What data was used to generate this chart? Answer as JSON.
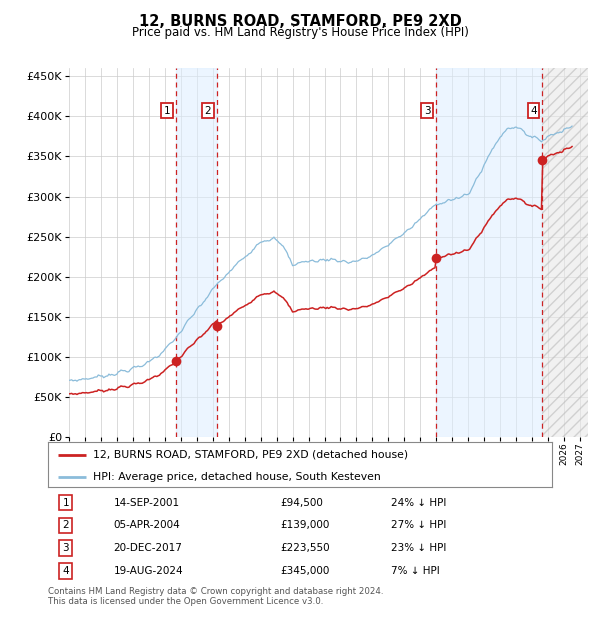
{
  "title": "12, BURNS ROAD, STAMFORD, PE9 2XD",
  "subtitle": "Price paid vs. HM Land Registry's House Price Index (HPI)",
  "ylim": [
    0,
    460000
  ],
  "yticks": [
    0,
    50000,
    100000,
    150000,
    200000,
    250000,
    300000,
    350000,
    400000,
    450000
  ],
  "xlim_start": 1995.0,
  "xlim_end": 2027.5,
  "purchases": [
    {
      "date_num": 2001.708,
      "price": 94500,
      "label": "1"
    },
    {
      "date_num": 2004.256,
      "price": 139000,
      "label": "2"
    },
    {
      "date_num": 2017.972,
      "price": 223550,
      "label": "3"
    },
    {
      "date_num": 2024.633,
      "price": 345000,
      "label": "4"
    }
  ],
  "table_rows": [
    {
      "num": "1",
      "date": "14-SEP-2001",
      "price": "£94,500",
      "pct": "24% ↓ HPI"
    },
    {
      "num": "2",
      "date": "05-APR-2004",
      "price": "£139,000",
      "pct": "27% ↓ HPI"
    },
    {
      "num": "3",
      "date": "20-DEC-2017",
      "price": "£223,550",
      "pct": "23% ↓ HPI"
    },
    {
      "num": "4",
      "date": "19-AUG-2024",
      "price": "£345,000",
      "pct": "7% ↓ HPI"
    }
  ],
  "legend_line1": "12, BURNS ROAD, STAMFORD, PE9 2XD (detached house)",
  "legend_line2": "HPI: Average price, detached house, South Kesteven",
  "footer1": "Contains HM Land Registry data © Crown copyright and database right 2024.",
  "footer2": "This data is licensed under the Open Government Licence v3.0.",
  "hpi_color": "#8bbcda",
  "price_color": "#cc2222",
  "bg_color": "#ffffff",
  "grid_color": "#cccccc",
  "shade_color": "#ddeeff",
  "hpi_anchors_t": [
    1995.0,
    1996.5,
    1998.0,
    1999.5,
    2001.0,
    2001.708,
    2003.0,
    2004.256,
    2005.5,
    2007.0,
    2007.8,
    2008.5,
    2009.0,
    2009.5,
    2010.5,
    2011.5,
    2012.5,
    2013.5,
    2014.5,
    2015.5,
    2016.5,
    2017.0,
    2017.972,
    2018.5,
    2019.5,
    2020.0,
    2021.0,
    2021.5,
    2022.0,
    2022.5,
    2023.0,
    2023.5,
    2024.0,
    2024.633,
    2025.0,
    2026.5
  ],
  "hpi_anchors_v": [
    70000,
    74000,
    80000,
    88000,
    108000,
    124000,
    158000,
    190000,
    215000,
    245000,
    248000,
    235000,
    215000,
    218000,
    220000,
    222000,
    218000,
    222000,
    232000,
    248000,
    262000,
    272000,
    290000,
    295000,
    298000,
    302000,
    340000,
    358000,
    375000,
    385000,
    388000,
    382000,
    372000,
    371000,
    375000,
    388000
  ]
}
